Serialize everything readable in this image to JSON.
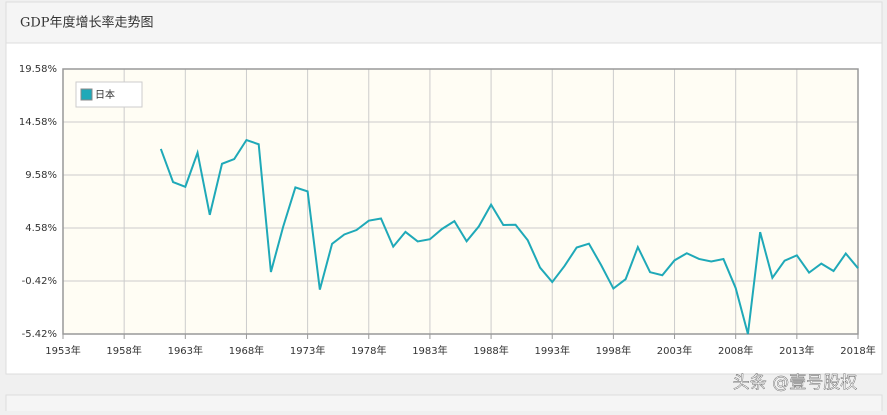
{
  "header": {
    "title": "GDP年度增长率走势图"
  },
  "watermark": "头条 @壹号股权",
  "chart_data": {
    "type": "line",
    "x": [
      1961,
      1962,
      1963,
      1964,
      1965,
      1966,
      1967,
      1968,
      1969,
      1970,
      1971,
      1972,
      1973,
      1974,
      1975,
      1976,
      1977,
      1978,
      1979,
      1980,
      1981,
      1982,
      1983,
      1984,
      1985,
      1986,
      1987,
      1988,
      1989,
      1990,
      1991,
      1992,
      1993,
      1994,
      1995,
      1996,
      1997,
      1998,
      1999,
      2000,
      2001,
      2002,
      2003,
      2004,
      2005,
      2006,
      2007,
      2008,
      2009,
      2010,
      2011,
      2012,
      2013,
      2014,
      2015,
      2016,
      2017,
      2018
    ],
    "series": [
      {
        "name": "日本",
        "color": "#1fa9b8",
        "values": [
          12.04,
          8.91,
          8.47,
          11.68,
          5.82,
          10.64,
          11.08,
          12.88,
          12.48,
          0.43,
          4.7,
          8.41,
          8.03,
          -1.23,
          3.09,
          3.97,
          4.39,
          5.27,
          5.48,
          2.82,
          4.21,
          3.31,
          3.52,
          4.5,
          5.23,
          3.33,
          4.73,
          6.79,
          4.86,
          4.89,
          3.42,
          0.85,
          -0.52,
          0.99,
          2.74,
          3.1,
          1.08,
          -1.13,
          -0.25,
          2.78,
          0.41,
          0.12,
          1.53,
          2.2,
          1.66,
          1.42,
          1.65,
          -1.09,
          -5.42,
          4.19,
          -0.12,
          1.5,
          2.0,
          0.37,
          1.22,
          0.52,
          2.17,
          0.79
        ]
      }
    ],
    "xlim": [
      1953,
      2018
    ],
    "xticks": [
      {
        "value": 1953,
        "label": "1953年"
      },
      {
        "value": 1958,
        "label": "1958年"
      },
      {
        "value": 1963,
        "label": "1963年"
      },
      {
        "value": 1968,
        "label": "1968年"
      },
      {
        "value": 1973,
        "label": "1973年"
      },
      {
        "value": 1978,
        "label": "1978年"
      },
      {
        "value": 1983,
        "label": "1983年"
      },
      {
        "value": 1988,
        "label": "1988年"
      },
      {
        "value": 1993,
        "label": "1993年"
      },
      {
        "value": 1998,
        "label": "1998年"
      },
      {
        "value": 2003,
        "label": "2003年"
      },
      {
        "value": 2008,
        "label": "2008年"
      },
      {
        "value": 2013,
        "label": "2013年"
      },
      {
        "value": 2018,
        "label": "2018年"
      }
    ],
    "ylim": [
      -5.42,
      19.58
    ],
    "yticks": [
      {
        "value": -5.42,
        "label": "-5.42%"
      },
      {
        "value": -0.42,
        "label": "-0.42%"
      },
      {
        "value": 4.58,
        "label": "4.58%"
      },
      {
        "value": 9.58,
        "label": "9.58%"
      },
      {
        "value": 14.58,
        "label": "14.58%"
      },
      {
        "value": 19.58,
        "label": "19.58%"
      }
    ],
    "grid": true,
    "legend": "top-left"
  }
}
